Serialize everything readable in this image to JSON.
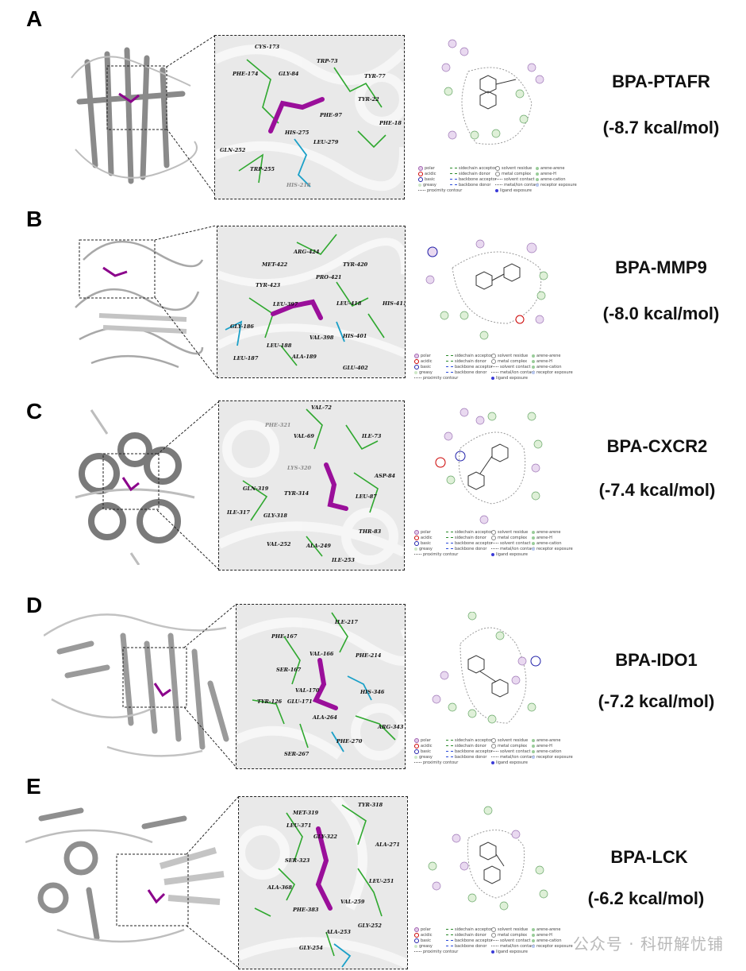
{
  "panels": [
    {
      "letter": "A",
      "title": "BPA-PTAFR",
      "energy": "(-8.7 kcal/mol)",
      "residues": [
        "CYS-173",
        "PHE-174",
        "GLY-84",
        "TRP-73",
        "TYR-77",
        "TYR-22",
        "PHE-97",
        "PHE-18",
        "HIS-275",
        "LEU-279",
        "GLN-252",
        "TRP-255",
        "HIS-218"
      ]
    },
    {
      "letter": "B",
      "title": "BPA-MMP9",
      "energy": "(-8.0 kcal/mol)",
      "residues": [
        "ARG-424",
        "MET-422",
        "TYR-420",
        "PRO-421",
        "TYR-423",
        "LEU-397",
        "LEU-418",
        "HIS-411",
        "GLY-186",
        "LEU-188",
        "VAL-398",
        "HIS-401",
        "LEU-187",
        "ALA-189",
        "GLU-402"
      ]
    },
    {
      "letter": "C",
      "title": "BPA-CXCR2",
      "energy": "(-7.4 kcal/mol)",
      "residues": [
        "VAL-72",
        "PHE-321",
        "VAL-69",
        "ILE-73",
        "LYS-320",
        "ASP-84",
        "GLN-319",
        "TYR-314",
        "LEU-87",
        "ILE-317",
        "GLY-318",
        "THR-83",
        "VAL-252",
        "ALA-249",
        "ILE-253"
      ]
    },
    {
      "letter": "D",
      "title": "BPA-IDO1",
      "energy": "(-7.2 kcal/mol)",
      "residues": [
        "ILE-217",
        "PHE-167",
        "VAL-166",
        "PHE-214",
        "SER-167",
        "VAL-170",
        "HIS-346",
        "TYR-126",
        "GLU-171",
        "ALA-264",
        "ARG-343",
        "PHE-270",
        "SER-267"
      ]
    },
    {
      "letter": "E",
      "title": "BPA-LCK",
      "energy": "(-6.2 kcal/mol)",
      "residues": [
        "TYR-318",
        "MET-319",
        "LEU-371",
        "GLY-322",
        "ALA-271",
        "SER-323",
        "LEU-251",
        "ALA-368",
        "VAL-259",
        "PHE-383",
        "GLY-252",
        "ALA-253",
        "GLY-254"
      ]
    }
  ],
  "legend": {
    "col1": [
      "polar",
      "acidic",
      "basic",
      "greasy",
      "proximity contour"
    ],
    "col2": [
      "sidechain acceptor",
      "sidechain donor",
      "backbone acceptor",
      "backbone donor"
    ],
    "col3": [
      "solvent residue",
      "metal complex",
      "solvent contact",
      "metal/ion contact",
      "ligand exposure"
    ],
    "col4": [
      "arene-arene",
      "arene-H",
      "arene-cation",
      "receptor exposure"
    ]
  },
  "watermark": "公众号 · 科研解忧铺"
}
